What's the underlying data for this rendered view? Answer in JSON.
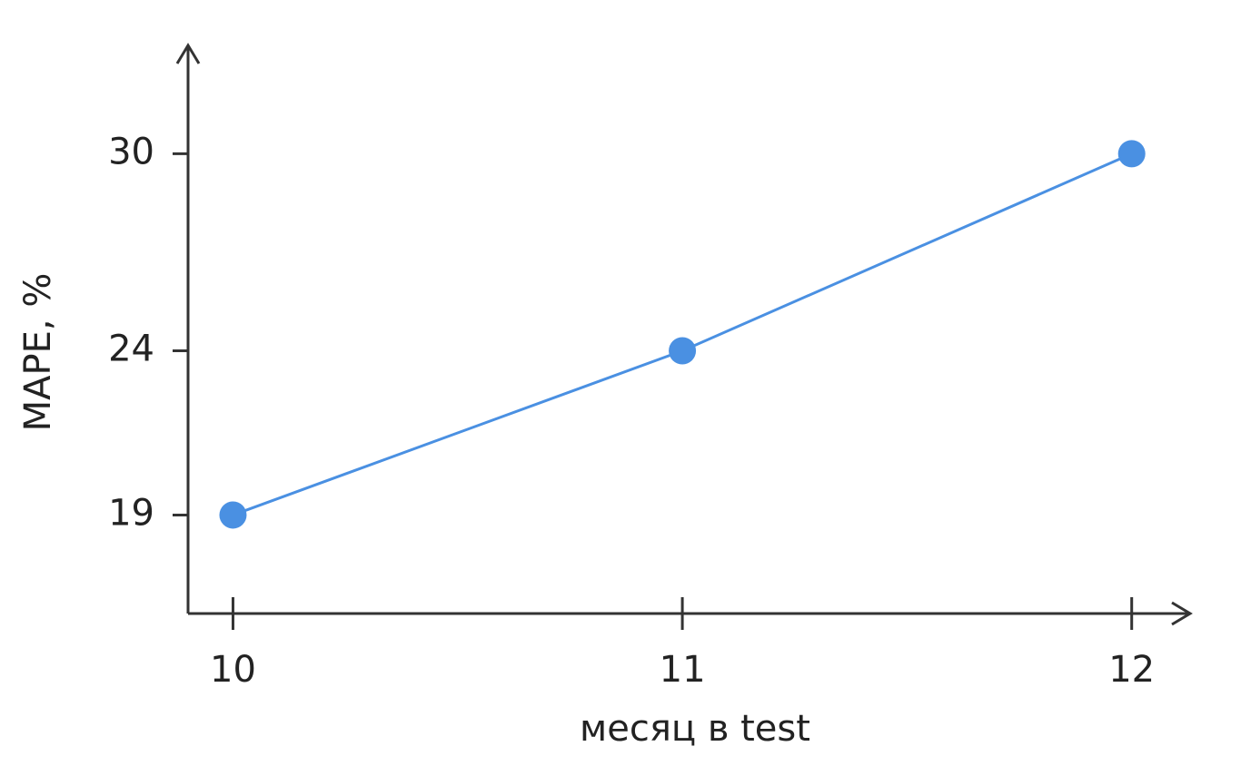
{
  "chart_data": {
    "type": "line",
    "x_label": "месяц в test",
    "y_label": "MAPE, %",
    "x": [
      10,
      11,
      12
    ],
    "series": [
      {
        "name": "MAPE",
        "color": "#4a90e2",
        "values": [
          19,
          24,
          30
        ]
      }
    ],
    "xlim": [
      9.9,
      12.13
    ],
    "xticks": [
      10,
      11,
      12
    ],
    "ylim": [
      16,
      33.3
    ],
    "yticks": [
      19,
      24,
      30
    ]
  }
}
